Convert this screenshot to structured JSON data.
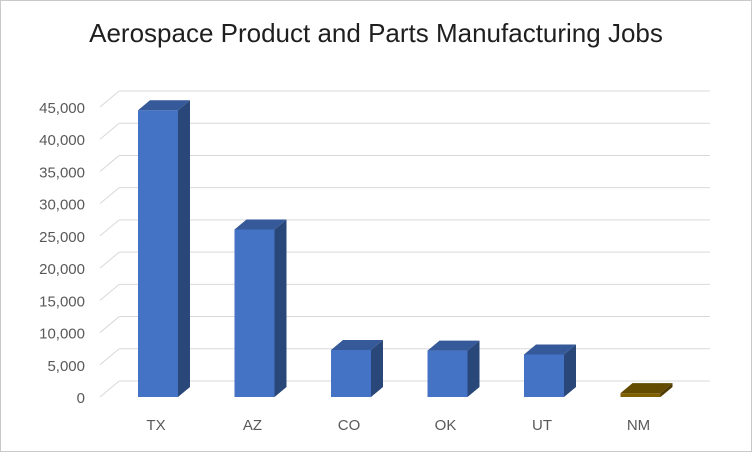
{
  "chart_data": {
    "type": "bar",
    "title": "Aerospace Product and Parts Manufacturing Jobs",
    "categories": [
      "TX",
      "AZ",
      "CO",
      "OK",
      "UT",
      "NM"
    ],
    "values": [
      44500,
      26000,
      7300,
      7200,
      6600,
      600
    ],
    "colors": [
      "#4472C4",
      "#4472C4",
      "#4472C4",
      "#4472C4",
      "#4472C4",
      "#7F6000"
    ],
    "y_ticks": [
      "0",
      "5,000",
      "10,000",
      "15,000",
      "20,000",
      "25,000",
      "30,000",
      "35,000",
      "40,000",
      "45,000"
    ],
    "ylim": [
      0,
      45000
    ],
    "grid": true,
    "bar_style": "3d-column"
  }
}
